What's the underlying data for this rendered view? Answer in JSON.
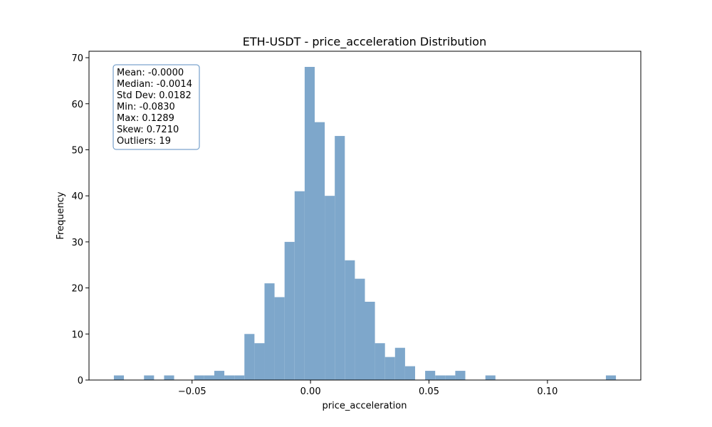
{
  "chart_data": {
    "type": "bar",
    "title": "ETH-USDT - price_acceleration Distribution",
    "xlabel": "price_acceleration",
    "ylabel": "Frequency",
    "xlim": [
      -0.0935,
      0.1394
    ],
    "ylim": [
      0,
      71.4
    ],
    "xticks": [
      -0.05,
      0.0,
      0.05,
      0.1
    ],
    "xtick_labels": [
      "−0.05",
      "0.00",
      "0.05",
      "0.10"
    ],
    "yticks": [
      0,
      10,
      20,
      30,
      40,
      50,
      60,
      70
    ],
    "ytick_labels": [
      "0",
      "10",
      "20",
      "30",
      "40",
      "50",
      "60",
      "70"
    ],
    "bin_start": -0.083,
    "bin_width": 0.004238,
    "values": [
      1,
      0,
      0,
      1,
      0,
      1,
      0,
      0,
      1,
      1,
      2,
      1,
      1,
      10,
      8,
      21,
      18,
      30,
      41,
      68,
      56,
      40,
      53,
      26,
      22,
      17,
      8,
      5,
      7,
      3,
      0,
      2,
      1,
      1,
      2,
      0,
      0,
      1,
      0,
      0,
      0,
      0,
      0,
      0,
      0,
      0,
      0,
      0,
      0,
      1
    ],
    "bar_color": "#7ea7cb",
    "grid": false,
    "stats_box": {
      "position": "top-left",
      "lines": [
        "Mean: -0.0000",
        "Median: -0.0014",
        "Std Dev: 0.0182",
        "Min: -0.0830",
        "Max: 0.1289",
        "Skew: 0.7210",
        "Outliers: 19"
      ],
      "border_color": "#5b8ec0"
    }
  }
}
